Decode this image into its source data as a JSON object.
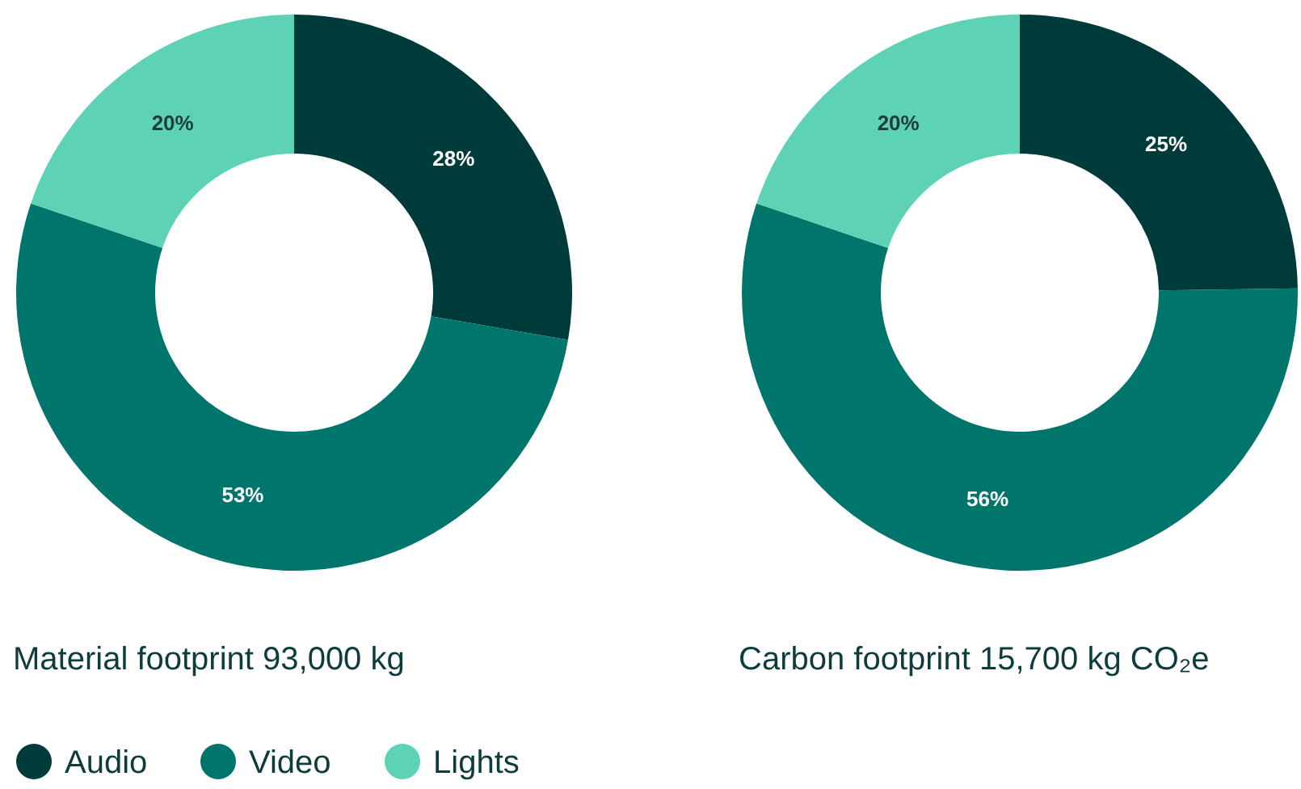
{
  "chart_data": [
    {
      "type": "donut",
      "title": "Material footprint 93,000 kg",
      "categories": [
        "Audio",
        "Video",
        "Lights"
      ],
      "values": [
        28,
        53,
        20
      ],
      "value_labels": [
        "28%",
        "53%",
        "20%"
      ],
      "colors": [
        "#003b3c",
        "#00756b",
        "#5dd2b5"
      ],
      "legend": "bottom"
    },
    {
      "type": "donut",
      "title": "Carbon footprint 15,700 kg CO₂e",
      "categories": [
        null,
        null,
        null
      ],
      "values": [
        25,
        56,
        20
      ],
      "value_labels": [
        "25%",
        "56%",
        "20%"
      ],
      "colors": [
        "#003b3c",
        "#00756b",
        "#5dd2b5"
      ]
    }
  ]
}
